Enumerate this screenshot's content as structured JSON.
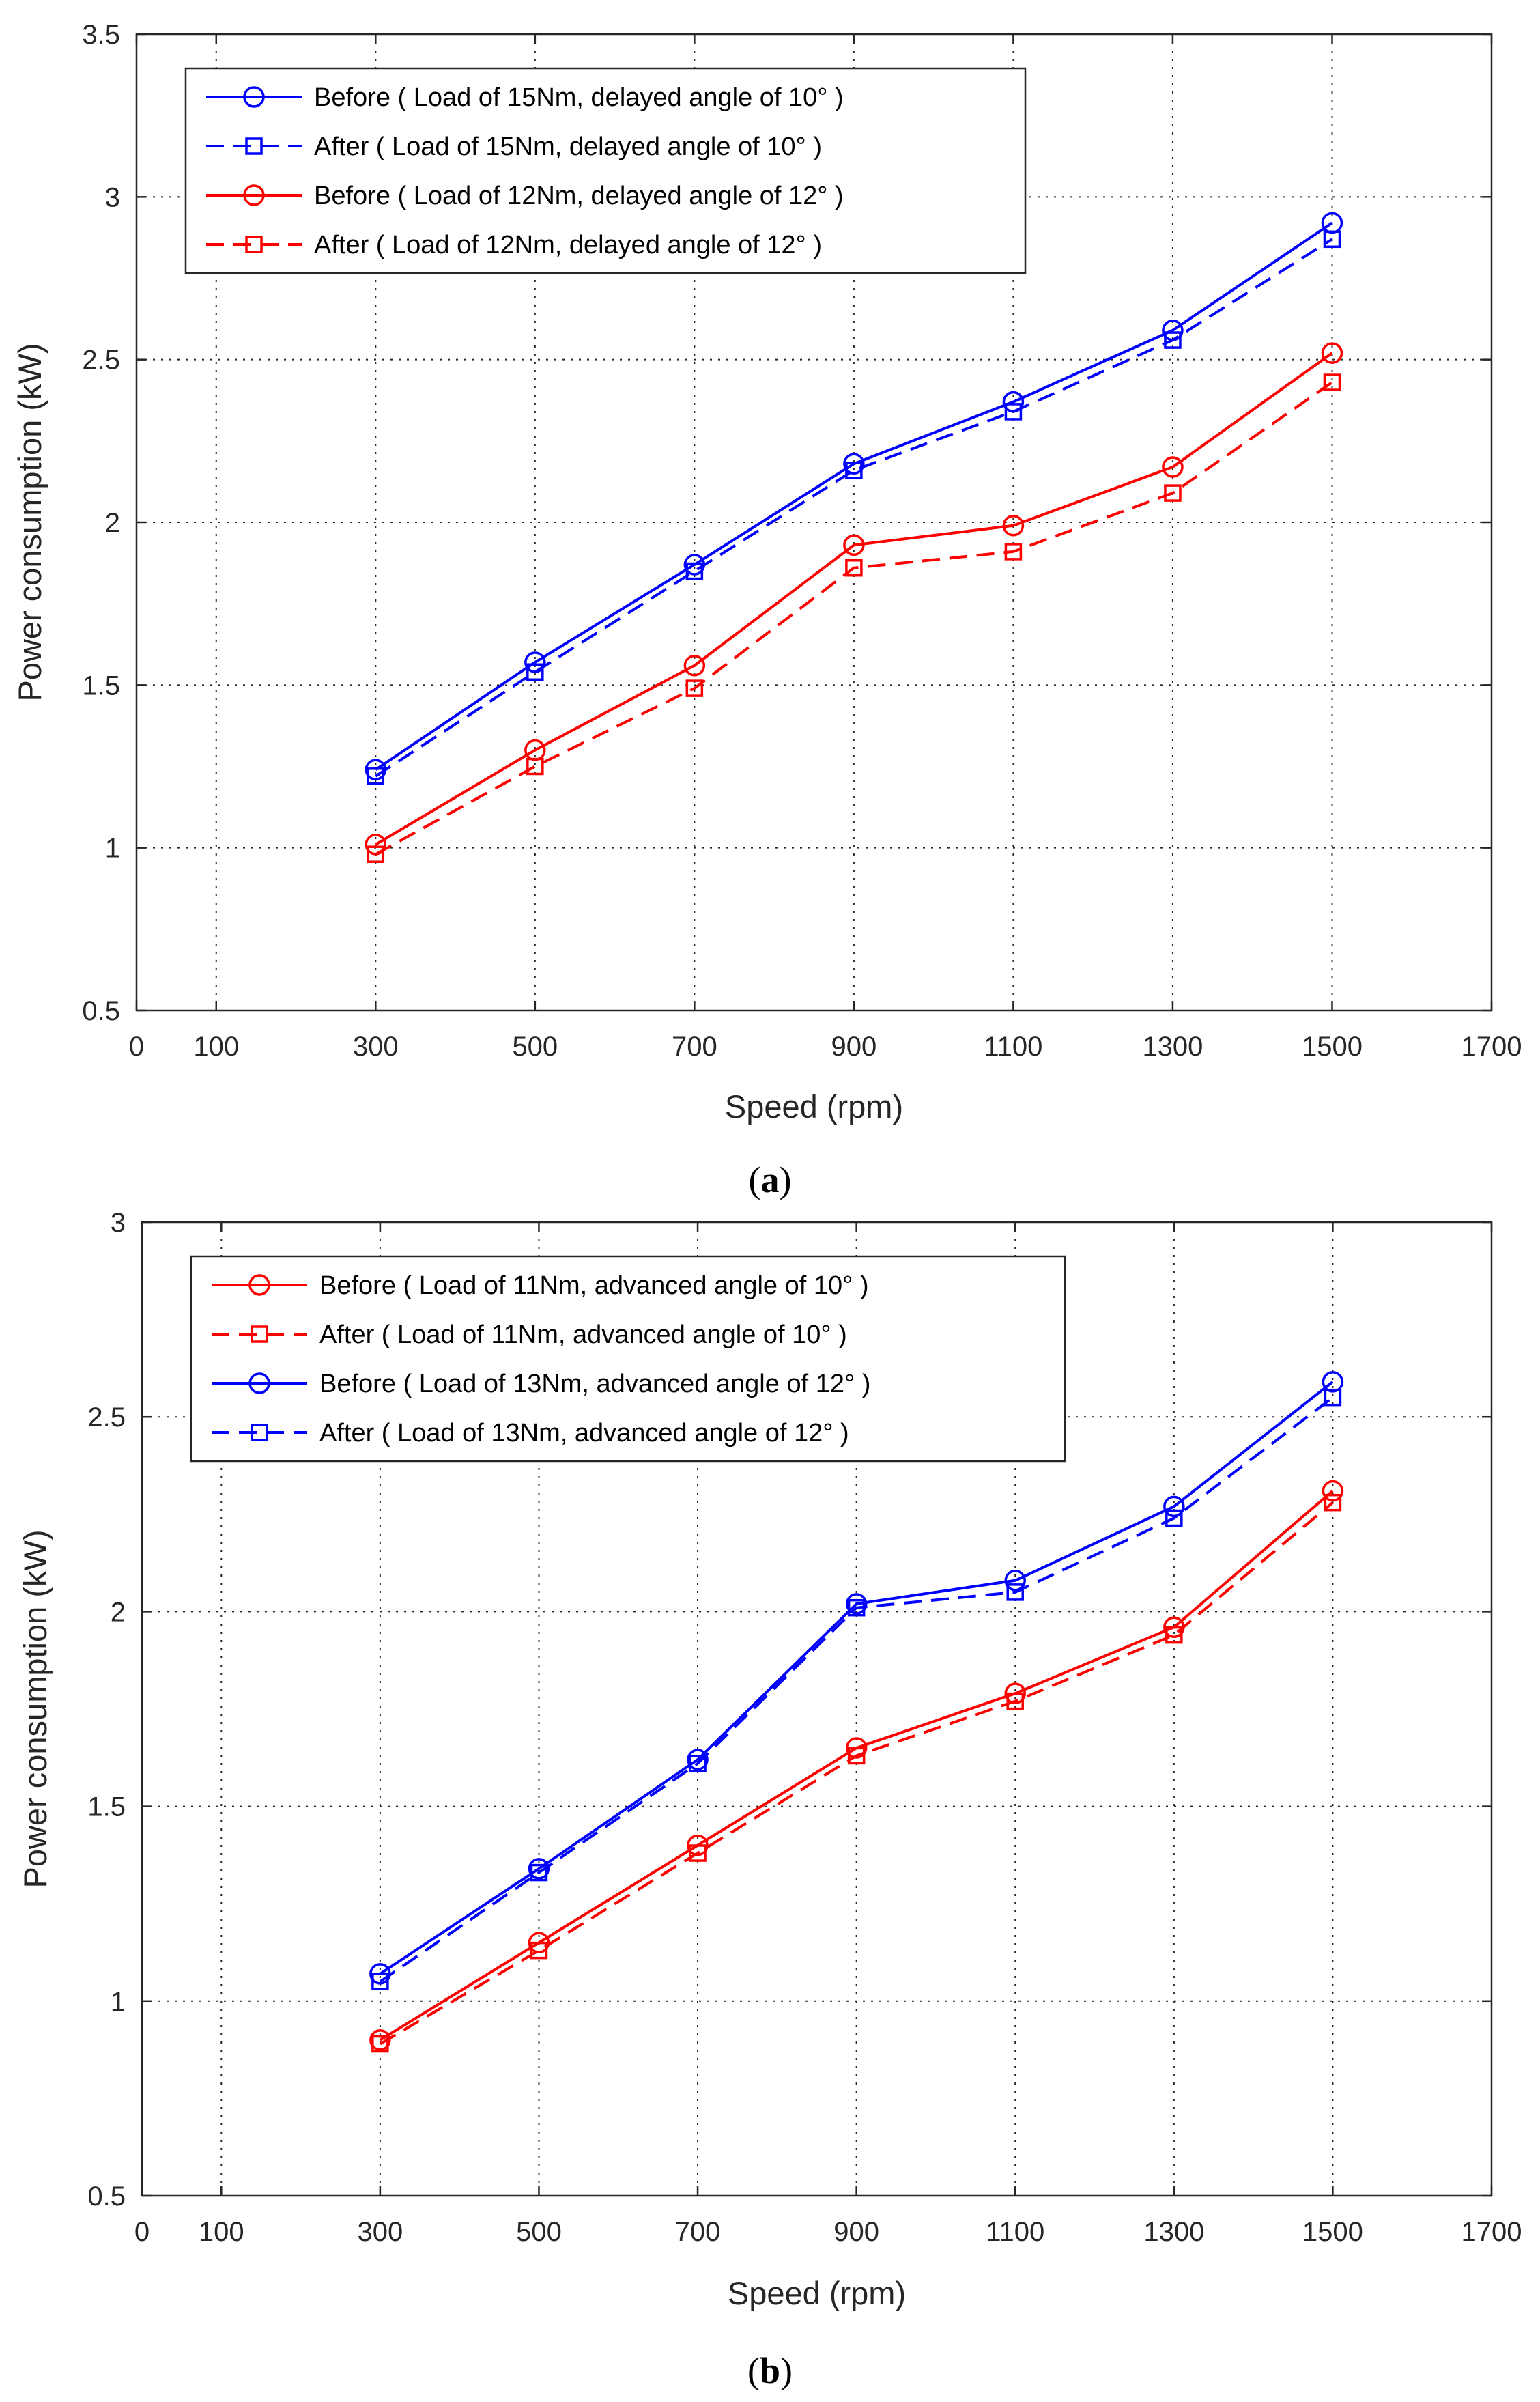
{
  "chart_data": [
    {
      "type": "line",
      "caption_paren_open": "(",
      "caption_letter": "a",
      "caption_paren_close": ")",
      "xlabel": "Speed (rpm)",
      "ylabel": "Power consumption (kW)",
      "xlim": [
        0,
        1700
      ],
      "ylim": [
        0.5,
        3.5
      ],
      "xticks": [
        "0",
        "100",
        "300",
        "500",
        "700",
        "900",
        "1100",
        "1300",
        "1500",
        "1700"
      ],
      "yticks": [
        "0.5",
        "1",
        "1.5",
        "2",
        "2.5",
        "3",
        "3.5"
      ],
      "grid": true,
      "legend_position": "top-left",
      "x": [
        300,
        500,
        700,
        900,
        1100,
        1300,
        1500
      ],
      "series": [
        {
          "name": "Before ( Load of 15Nm, delayed angle of 10° )",
          "color": "#0000ff",
          "line": "solid",
          "marker": "circle",
          "values": [
            1.24,
            1.57,
            1.87,
            2.18,
            2.37,
            2.59,
            2.92
          ]
        },
        {
          "name": "After ( Load of 15Nm, delayed angle of 10° )",
          "color": "#0000ff",
          "line": "dashed",
          "marker": "square",
          "values": [
            1.22,
            1.54,
            1.85,
            2.16,
            2.34,
            2.56,
            2.87
          ]
        },
        {
          "name": "Before ( Load of 12Nm, delayed angle of 12° )",
          "color": "#ff0000",
          "line": "solid",
          "marker": "circle",
          "values": [
            1.01,
            1.3,
            1.56,
            1.93,
            1.99,
            2.17,
            2.52
          ]
        },
        {
          "name": "After ( Load of 12Nm, delayed angle of 12° )",
          "color": "#ff0000",
          "line": "dashed",
          "marker": "square",
          "values": [
            0.98,
            1.25,
            1.49,
            1.86,
            1.91,
            2.09,
            2.43
          ]
        }
      ]
    },
    {
      "type": "line",
      "caption_paren_open": "(",
      "caption_letter": "b",
      "caption_paren_close": ")",
      "xlabel": "Speed (rpm)",
      "ylabel": "Power consumption (kW)",
      "xlim": [
        0,
        1700
      ],
      "ylim": [
        0.5,
        3.0
      ],
      "xticks": [
        "0",
        "100",
        "300",
        "500",
        "700",
        "900",
        "1100",
        "1300",
        "1500",
        "1700"
      ],
      "yticks": [
        "0.5",
        "1",
        "1.5",
        "2",
        "2.5",
        "3"
      ],
      "grid": true,
      "legend_position": "top-left",
      "x": [
        300,
        500,
        700,
        900,
        1100,
        1300,
        1500
      ],
      "series": [
        {
          "name": "Before ( Load of 11Nm, advanced angle of 10° )",
          "color": "#ff0000",
          "line": "solid",
          "marker": "circle",
          "values": [
            0.9,
            1.15,
            1.4,
            1.65,
            1.79,
            1.96,
            2.31
          ]
        },
        {
          "name": "After ( Load of 11Nm, advanced angle of 10° )",
          "color": "#ff0000",
          "line": "dashed",
          "marker": "square",
          "values": [
            0.89,
            1.13,
            1.38,
            1.63,
            1.77,
            1.94,
            2.28
          ]
        },
        {
          "name": "Before ( Load of 13Nm, advanced angle of 12° )",
          "color": "#0000ff",
          "line": "solid",
          "marker": "circle",
          "values": [
            1.07,
            1.34,
            1.62,
            2.02,
            2.08,
            2.27,
            2.59
          ]
        },
        {
          "name": "After ( Load of 13Nm, advanced angle of 12° )",
          "color": "#0000ff",
          "line": "dashed",
          "marker": "square",
          "values": [
            1.05,
            1.33,
            1.61,
            2.01,
            2.05,
            2.24,
            2.55
          ]
        }
      ]
    }
  ]
}
